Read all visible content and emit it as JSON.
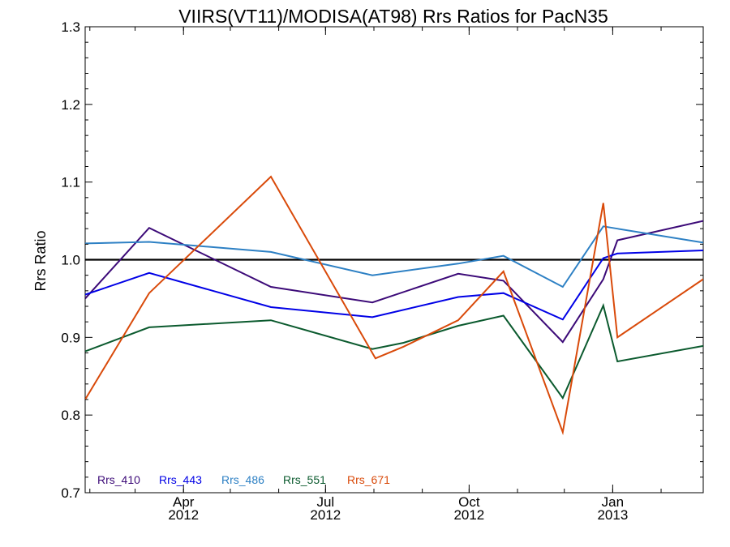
{
  "chart_data": {
    "type": "line",
    "title": "VIIRS(VT11)/MODISA(AT98)  Rrs Ratios for PacN35",
    "xlabel": "",
    "ylabel": "Rrs Ratio",
    "ylim": [
      0.7,
      1.3
    ],
    "xlim": [
      "2012-01-29",
      "2013-02-28"
    ],
    "y_ticks": [
      "0.7",
      "0.8",
      "0.9",
      "1.0",
      "1.1",
      "1.2",
      "1.3"
    ],
    "x_ticks": [
      {
        "date": "2012-04-01",
        "line1": "Apr",
        "line2": "2012"
      },
      {
        "date": "2012-07-01",
        "line1": "Jul",
        "line2": "2012"
      },
      {
        "date": "2012-10-01",
        "line1": "Oct",
        "line2": "2012"
      },
      {
        "date": "2013-01-01",
        "line1": "Jan",
        "line2": "2013"
      }
    ],
    "reference_line": 1.0,
    "legend_position": "bottom-left",
    "series": [
      {
        "name": "Rrs_410",
        "color": "#3c0a78",
        "x": [
          "2012-01-29",
          "2012-03-10",
          "2012-05-27",
          "2012-07-31",
          "2012-09-24",
          "2012-10-23",
          "2012-11-30",
          "2012-12-26",
          "2013-01-04",
          "2013-02-28"
        ],
        "y": [
          0.95,
          1.041,
          0.965,
          0.945,
          0.982,
          0.973,
          0.894,
          0.975,
          1.025,
          1.05
        ]
      },
      {
        "name": "Rrs_443",
        "color": "#0000e6",
        "x": [
          "2012-01-29",
          "2012-03-10",
          "2012-05-27",
          "2012-07-31",
          "2012-09-24",
          "2012-10-23",
          "2012-11-30",
          "2012-12-26",
          "2013-01-04",
          "2013-02-28"
        ],
        "y": [
          0.955,
          0.983,
          0.939,
          0.926,
          0.952,
          0.957,
          0.923,
          1.002,
          1.008,
          1.012
        ]
      },
      {
        "name": "Rrs_486",
        "color": "#2d80c4",
        "x": [
          "2012-01-29",
          "2012-03-10",
          "2012-05-27",
          "2012-07-31",
          "2012-09-24",
          "2012-10-23",
          "2012-11-30",
          "2012-12-26",
          "2013-01-04",
          "2013-02-28"
        ],
        "y": [
          1.021,
          1.023,
          1.01,
          0.98,
          0.995,
          1.005,
          0.965,
          1.043,
          1.04,
          1.022
        ]
      },
      {
        "name": "Rrs_551",
        "color": "#0b5a2e",
        "x": [
          "2012-01-29",
          "2012-03-10",
          "2012-05-27",
          "2012-07-31",
          "2012-08-20",
          "2012-09-24",
          "2012-10-23",
          "2012-11-30",
          "2012-12-26",
          "2013-01-04",
          "2013-02-28"
        ],
        "y": [
          0.882,
          0.913,
          0.922,
          0.885,
          0.893,
          0.915,
          0.928,
          0.822,
          0.941,
          0.869,
          0.889
        ]
      },
      {
        "name": "Rrs_671",
        "color": "#d94a0a",
        "x": [
          "2012-01-29",
          "2012-03-10",
          "2012-05-27",
          "2012-08-02",
          "2012-08-20",
          "2012-09-24",
          "2012-10-23",
          "2012-11-30",
          "2012-12-26",
          "2013-01-04",
          "2013-02-28"
        ],
        "y": [
          0.82,
          0.957,
          1.107,
          0.873,
          0.888,
          0.922,
          0.985,
          0.778,
          1.073,
          0.9,
          0.975
        ]
      }
    ]
  }
}
